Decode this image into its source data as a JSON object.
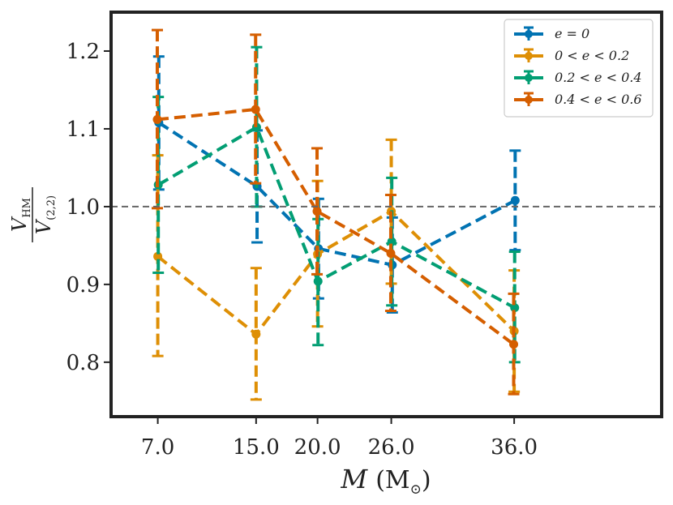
{
  "chart_data": {
    "type": "line",
    "x_tick_labels": [
      "7.0",
      "15.0",
      "20.0",
      "26.0",
      "36.0"
    ],
    "x": [
      7,
      15,
      20,
      26,
      36
    ],
    "xlim": [
      3.2,
      48
    ],
    "ylim": [
      0.73,
      1.25
    ],
    "y_ticks": [
      0.8,
      0.9,
      1.0,
      1.1,
      1.2
    ],
    "y_tick_labels": [
      "0.8",
      "0.9",
      "1.0",
      "1.1",
      "1.2"
    ],
    "xlabel": {
      "main": "M",
      "unit": "(M",
      "unit_sub": "⊙",
      "close": ")"
    },
    "ylabel": {
      "num": "V",
      "num_sub": "HM",
      "den": "V",
      "den_sub": "(2,2)"
    },
    "reference_line": {
      "y": 1.0,
      "style": "dashed",
      "color": "#666666"
    },
    "legend_position": "top-right",
    "series": [
      {
        "name": "e = 0",
        "color": "#0173b2",
        "offset": 0.08,
        "values": [
          1.108,
          1.026,
          0.946,
          0.925,
          1.008
        ],
        "err_low": [
          1.022,
          0.954,
          0.882,
          0.864,
          0.944
        ],
        "err_high": [
          1.193,
          1.098,
          1.01,
          0.986,
          1.072
        ]
      },
      {
        "name": "0 < e < 0.2",
        "color": "#de8f05",
        "offset": 0.0,
        "values": [
          0.936,
          0.836,
          0.939,
          0.994,
          0.84
        ],
        "err_low": [
          0.808,
          0.752,
          0.846,
          0.901,
          0.762
        ],
        "err_high": [
          1.066,
          0.921,
          1.033,
          1.086,
          0.918
        ]
      },
      {
        "name": "0.2 < e < 0.4",
        "color": "#029e73",
        "offset": 0.04,
        "values": [
          1.028,
          1.102,
          0.904,
          0.955,
          0.87
        ],
        "err_low": [
          0.915,
          1.0,
          0.822,
          0.873,
          0.8
        ],
        "err_high": [
          1.141,
          1.205,
          0.984,
          1.037,
          0.942
        ]
      },
      {
        "name": "0.4 < e < 0.6",
        "color": "#d55e00",
        "offset": -0.04,
        "values": [
          1.112,
          1.125,
          0.994,
          0.94,
          0.823
        ],
        "err_low": [
          0.998,
          1.03,
          0.913,
          0.866,
          0.759
        ],
        "err_high": [
          1.227,
          1.221,
          1.075,
          1.015,
          0.888
        ]
      }
    ]
  }
}
